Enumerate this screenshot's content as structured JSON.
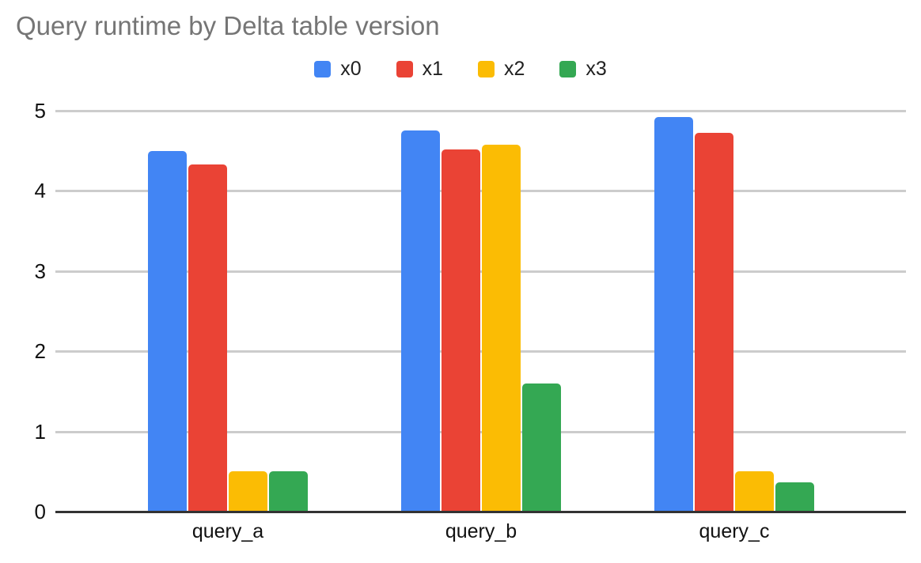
{
  "chart_data": {
    "type": "bar",
    "title": "Query runtime by Delta table version",
    "categories": [
      "query_a",
      "query_b",
      "query_c"
    ],
    "series": [
      {
        "name": "x0",
        "color": "#4285F4",
        "values": [
          4.5,
          4.75,
          4.92
        ]
      },
      {
        "name": "x1",
        "color": "#EA4335",
        "values": [
          4.33,
          4.52,
          4.72
        ]
      },
      {
        "name": "x2",
        "color": "#FBBC04",
        "values": [
          0.5,
          4.58,
          0.5
        ]
      },
      {
        "name": "x3",
        "color": "#34A853",
        "values": [
          0.5,
          1.6,
          0.36
        ]
      }
    ],
    "xlabel": "",
    "ylabel": "",
    "ylim": [
      0,
      5
    ],
    "yticks": [
      0,
      1,
      2,
      3,
      4,
      5
    ],
    "grid": true,
    "legend_position": "top",
    "colors": {
      "title_text": "#757575",
      "axis_text": "#111111",
      "gridline": "#cccccc",
      "axis_line": "#333333",
      "background": "#ffffff"
    }
  }
}
